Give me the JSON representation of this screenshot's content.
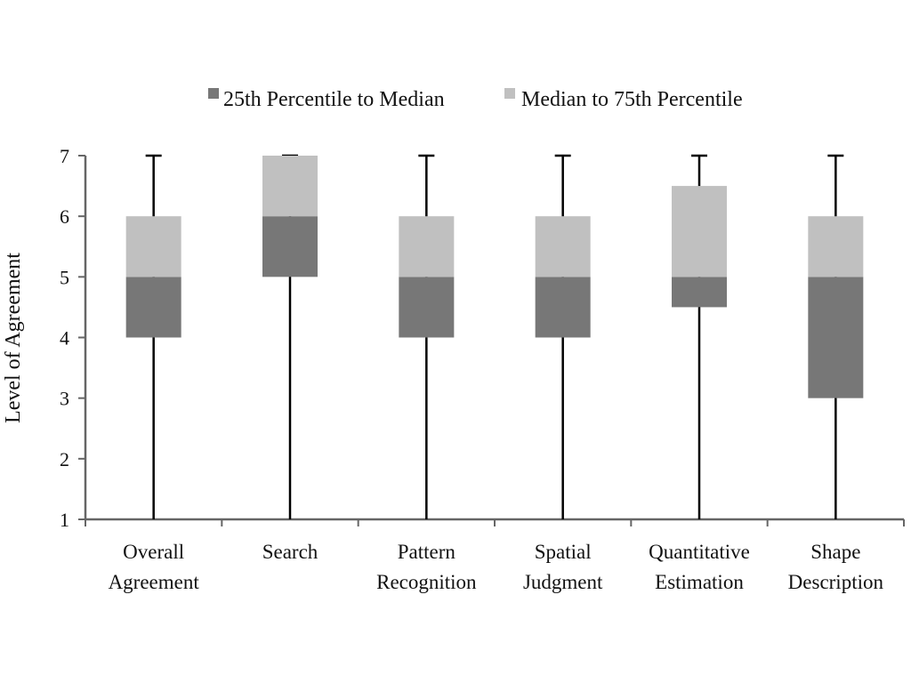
{
  "chart_data": {
    "type": "box",
    "title": "",
    "xlabel": "",
    "ylabel": "Level of Agreement",
    "ylim": [
      1,
      7
    ],
    "yticks": [
      1,
      2,
      3,
      4,
      5,
      6,
      7
    ],
    "grid": false,
    "legend_position": "top",
    "categories": [
      [
        "Overall",
        "Agreement"
      ],
      [
        "Search"
      ],
      [
        "Pattern",
        "Recognition"
      ],
      [
        "Spatial",
        "Judgment"
      ],
      [
        "Quantitative",
        "Estimation"
      ],
      [
        "Shape",
        "Description"
      ]
    ],
    "series": [
      {
        "name": "25th Percentile to Median",
        "color": "#777777"
      },
      {
        "name": "Median to 75th Percentile",
        "color": "#c0c0c0"
      }
    ],
    "boxes": [
      {
        "min": 1,
        "q1": 4,
        "median": 5,
        "q3": 6,
        "max": 7
      },
      {
        "min": 1,
        "q1": 5,
        "median": 6,
        "q3": 7,
        "max": 7
      },
      {
        "min": 1,
        "q1": 4,
        "median": 5,
        "q3": 6,
        "max": 7
      },
      {
        "min": 1,
        "q1": 4,
        "median": 5,
        "q3": 6,
        "max": 7
      },
      {
        "min": 1,
        "q1": 4.5,
        "median": 5,
        "q3": 6.5,
        "max": 7
      },
      {
        "min": 1,
        "q1": 3,
        "median": 5,
        "q3": 6,
        "max": 7
      }
    ]
  }
}
